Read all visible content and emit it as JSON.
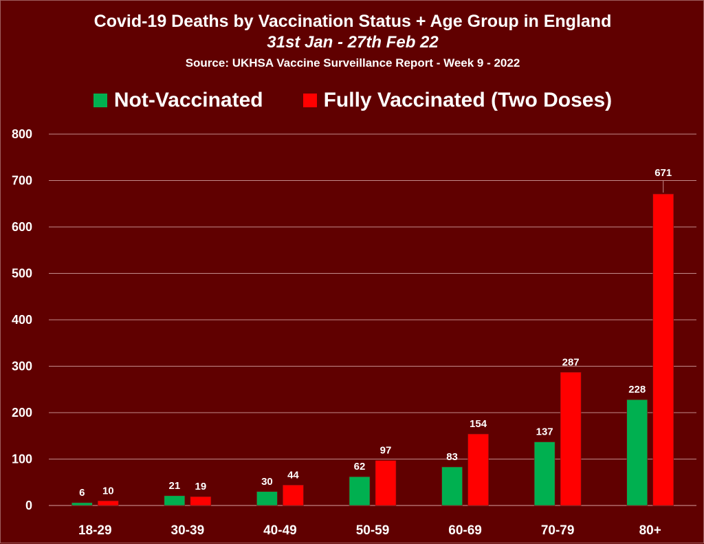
{
  "chart_data": {
    "type": "bar",
    "title": "Covid-19 Deaths by Vaccination Status + Age Group in England",
    "subtitle": "31st Jan - 27th Feb 22",
    "source": "Source: UKHSA Vaccine Surveillance Report - Week 9 - 2022",
    "categories": [
      "18-29",
      "30-39",
      "40-49",
      "50-59",
      "60-69",
      "70-79",
      "80+"
    ],
    "series": [
      {
        "name": "Not-Vaccinated",
        "color": "#00b050",
        "values": [
          6,
          21,
          30,
          62,
          83,
          137,
          228
        ]
      },
      {
        "name": "Fully Vaccinated (Two Doses)",
        "color": "#ff0000",
        "values": [
          10,
          19,
          44,
          97,
          154,
          287,
          671
        ]
      }
    ],
    "ylim": [
      0,
      800
    ],
    "yticks": [
      0,
      100,
      200,
      300,
      400,
      500,
      600,
      700,
      800
    ],
    "xlabel": "",
    "ylabel": "",
    "legend": "top",
    "grid": true,
    "data_labels": true
  }
}
